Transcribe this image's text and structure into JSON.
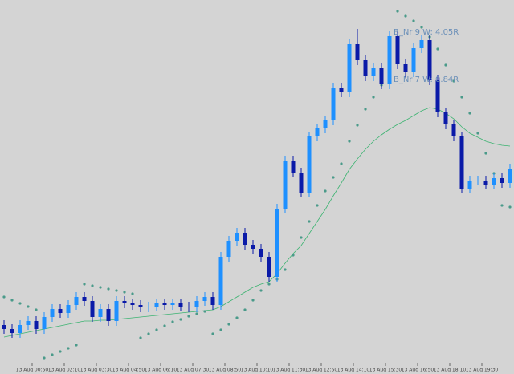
{
  "chart_data": {
    "type": "candlestick",
    "up_color": "#1e90ff",
    "down_color": "#0a1aa8",
    "background": "#d4d4d4",
    "ylim": [
      0,
      466
    ],
    "xlim": [
      -0.5,
      63.5
    ],
    "xticks": [
      {
        "value": 3.5,
        "label": "13 Aug 00:50"
      },
      {
        "value": 7.5,
        "label": "13 Aug 02:10"
      },
      {
        "value": 11.5,
        "label": "13 Aug 03:30"
      },
      {
        "value": 15.5,
        "label": "13 Aug 04:50"
      },
      {
        "value": 19.5,
        "label": "13 Aug 06:10"
      },
      {
        "value": 23.5,
        "label": "13 Aug 07:30"
      },
      {
        "value": 27.5,
        "label": "13 Aug 08:50"
      },
      {
        "value": 31.5,
        "label": "13 Aug 10:10"
      },
      {
        "value": 35.5,
        "label": "13 Aug 11:30"
      },
      {
        "value": 39.5,
        "label": "13 Aug 12:50"
      },
      {
        "value": 43.5,
        "label": "13 Aug 14:10"
      },
      {
        "value": 47.5,
        "label": "13 Aug 15:30"
      },
      {
        "value": 51.5,
        "label": "13 Aug 16:50"
      },
      {
        "value": 55.5,
        "label": "13 Aug 18:10"
      },
      {
        "value": 59.5,
        "label": "13 Aug 19:30"
      }
    ],
    "open": [
      61,
      56,
      51,
      61,
      66,
      56,
      71,
      81,
      76,
      86,
      96,
      91,
      71,
      81,
      66,
      91,
      88,
      86,
      83,
      84,
      88,
      86,
      88,
      84,
      83,
      91,
      96,
      86,
      146,
      166,
      176,
      161,
      156,
      146,
      121,
      206,
      266,
      251,
      226,
      296,
      306,
      316,
      356,
      351,
      411,
      391,
      371,
      381,
      361,
      421,
      386,
      376,
      406,
      416,
      366,
      326,
      311,
      296,
      231,
      241,
      241,
      236,
      244,
      238
    ],
    "high": [
      67,
      62,
      67,
      72,
      72,
      77,
      87,
      87,
      92,
      102,
      102,
      97,
      87,
      87,
      97,
      97,
      94,
      92,
      90,
      94,
      94,
      94,
      94,
      90,
      97,
      102,
      102,
      152,
      172,
      182,
      182,
      167,
      162,
      152,
      212,
      272,
      272,
      257,
      302,
      312,
      322,
      362,
      362,
      417,
      430,
      397,
      387,
      387,
      427,
      427,
      392,
      412,
      422,
      422,
      372,
      332,
      317,
      302,
      247,
      247,
      247,
      250,
      250,
      262
    ],
    "low": [
      50,
      45,
      45,
      55,
      50,
      50,
      65,
      70,
      70,
      80,
      85,
      65,
      65,
      60,
      60,
      82,
      80,
      77,
      77,
      78,
      80,
      80,
      78,
      77,
      77,
      85,
      80,
      80,
      140,
      160,
      155,
      150,
      140,
      115,
      115,
      200,
      245,
      220,
      220,
      290,
      300,
      310,
      345,
      345,
      385,
      365,
      365,
      355,
      355,
      380,
      370,
      370,
      400,
      360,
      320,
      305,
      290,
      225,
      225,
      235,
      230,
      230,
      232,
      232
    ],
    "close": [
      56,
      51,
      61,
      66,
      56,
      71,
      81,
      76,
      86,
      96,
      91,
      71,
      81,
      66,
      91,
      88,
      86,
      83,
      84,
      88,
      86,
      88,
      84,
      83,
      91,
      96,
      86,
      146,
      166,
      176,
      161,
      156,
      146,
      121,
      206,
      266,
      251,
      226,
      296,
      306,
      316,
      356,
      351,
      411,
      391,
      371,
      381,
      361,
      421,
      386,
      376,
      406,
      416,
      366,
      326,
      311,
      296,
      231,
      241,
      241,
      236,
      244,
      238,
      256
    ],
    "series": [
      {
        "kind": "line",
        "color": "#3cb371",
        "values": [
          46,
          48,
          50,
          52,
          54,
          56,
          58,
          60,
          62,
          64,
          66,
          66,
          67,
          67,
          68,
          69,
          70,
          71,
          72,
          73,
          74,
          75,
          76,
          77,
          78,
          79,
          80,
          84,
          90,
          96,
          102,
          108,
          112,
          115,
          125,
          138,
          150,
          160,
          175,
          190,
          205,
          222,
          238,
          255,
          268,
          280,
          290,
          298,
          305,
          311,
          316,
          322,
          328,
          332,
          330,
          325,
          318,
          308,
          300,
          295,
          290,
          287,
          285,
          284
        ]
      },
      {
        "kind": "dots",
        "color": "#4a9a8a",
        "values": [
          96,
          92,
          88,
          84,
          80,
          20,
          24,
          28,
          32,
          36,
          112,
          110,
          108,
          106,
          104,
          102,
          100,
          45,
          50,
          55,
          60,
          65,
          68,
          72,
          75,
          78,
          50,
          55,
          62,
          70,
          80,
          92,
          104,
          112,
          118,
          130,
          148,
          170,
          190,
          210,
          228,
          245,
          262,
          290,
          310,
          330,
          345,
          360,
          370,
          452,
          446,
          440,
          432,
          420,
          405,
          385,
          365,
          345,
          325,
          300,
          275,
          250,
          210,
          208
        ]
      }
    ],
    "annotations": [
      {
        "text": "B_Nr 9  W: 4.05R",
        "x": 48.5,
        "y": 426
      },
      {
        "text": "B_Nr 7  W: 0.84R",
        "x": 48.5,
        "y": 367
      }
    ]
  }
}
